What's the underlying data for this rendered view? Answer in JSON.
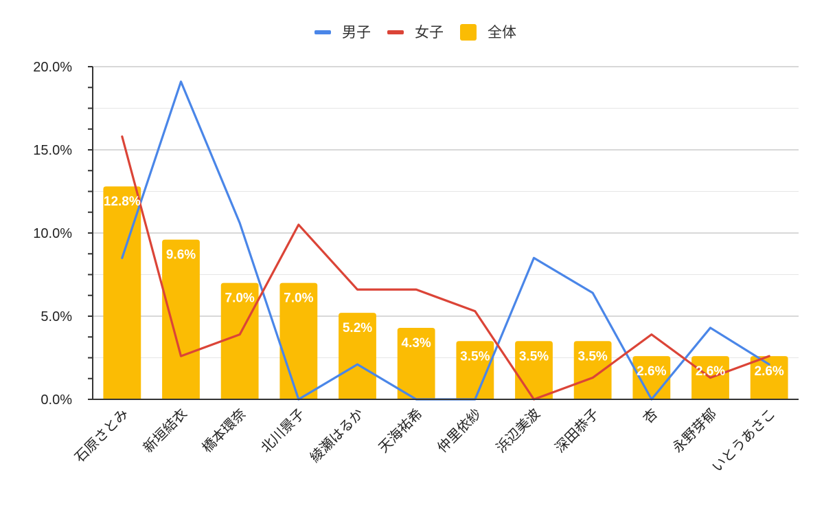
{
  "chart_data": {
    "type": "bar",
    "categories": [
      "石原さとみ",
      "新垣結衣",
      "橋本環奈",
      "北川景子",
      "綾瀬はるか",
      "天海祐希",
      "仲里依紗",
      "浜辺美波",
      "深田恭子",
      "杏",
      "永野芽郁",
      "いとうあさこ"
    ],
    "series": [
      {
        "name": "全体",
        "kind": "bar",
        "color": "#FBBC04",
        "values": [
          12.8,
          9.6,
          7.0,
          7.0,
          5.2,
          4.3,
          3.5,
          3.5,
          3.5,
          2.6,
          2.6,
          2.6
        ],
        "labels": [
          "12.8%",
          "9.6%",
          "7.0%",
          "7.0%",
          "5.2%",
          "4.3%",
          "3.5%",
          "3.5%",
          "3.5%",
          "2.6%",
          "2.6%",
          "2.6%"
        ]
      },
      {
        "name": "男子",
        "kind": "line",
        "color": "#4A86E8",
        "values": [
          8.5,
          19.1,
          10.6,
          0.0,
          2.1,
          0.0,
          0.0,
          8.5,
          6.4,
          0.0,
          4.3,
          2.1
        ]
      },
      {
        "name": "女子",
        "kind": "line",
        "color": "#DB4437",
        "values": [
          15.8,
          2.6,
          3.9,
          10.5,
          6.6,
          6.6,
          5.3,
          0.0,
          1.3,
          3.9,
          1.3,
          2.6
        ]
      }
    ],
    "legend_order": [
      "男子",
      "女子",
      "全体"
    ],
    "legend_position": "top",
    "ylim": [
      0,
      20
    ],
    "yticks": [
      0,
      5,
      10,
      15,
      20
    ],
    "ytick_labels": [
      "0.0%",
      "5.0%",
      "10.0%",
      "15.0%",
      "20.0%"
    ],
    "minor_gridlines": true,
    "title": "",
    "xlabel": "",
    "ylabel": ""
  }
}
